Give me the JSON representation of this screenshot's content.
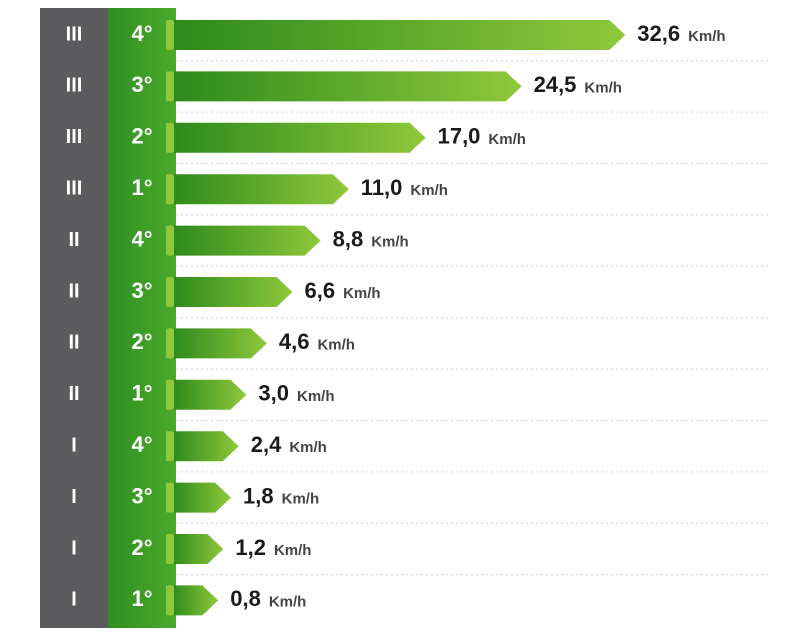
{
  "chart_data": {
    "type": "hbar",
    "ranges": [
      "III",
      "III",
      "III",
      "III",
      "II",
      "II",
      "II",
      "II",
      "I",
      "I",
      "I",
      "I"
    ],
    "categories": [
      "4°",
      "3°",
      "2°",
      "1°",
      "4°",
      "3°",
      "2°",
      "1°",
      "4°",
      "3°",
      "2°",
      "1°"
    ],
    "values": [
      32.6,
      24.5,
      17.0,
      11.0,
      8.8,
      6.6,
      4.6,
      3.0,
      2.4,
      1.8,
      1.2,
      0.8
    ],
    "value_labels": [
      "32,6",
      "24,5",
      "17,0",
      "11,0",
      "8,8",
      "6,6",
      "4,6",
      "3,0",
      "2,4",
      "1,8",
      "1,2",
      "0,8"
    ],
    "unit": "Km/h",
    "color": "#3c9a22"
  }
}
